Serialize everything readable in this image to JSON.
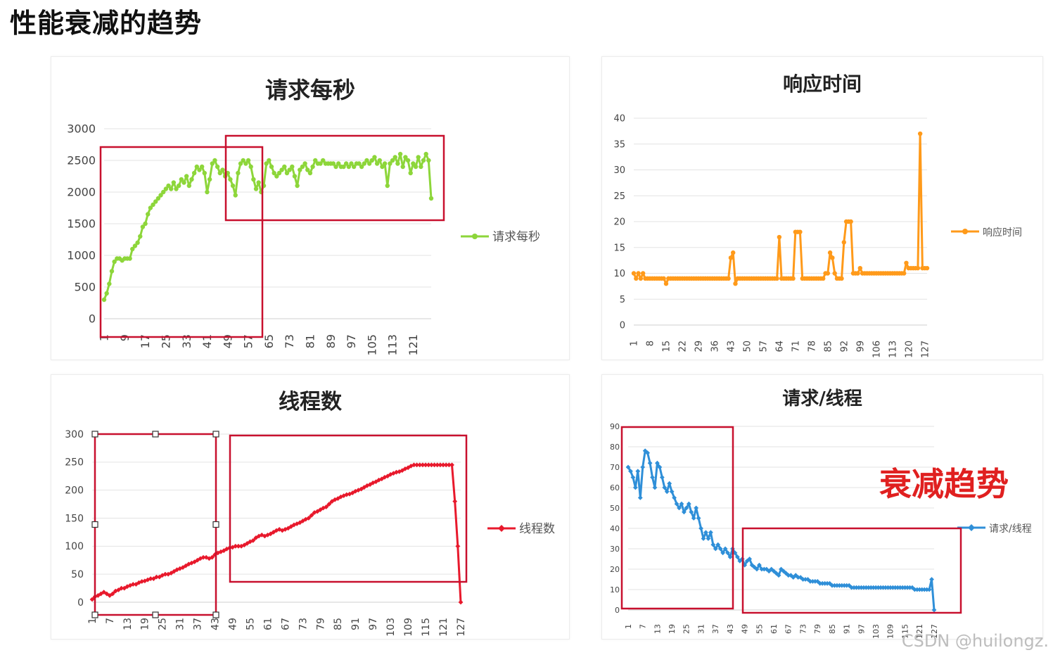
{
  "page": {
    "title": "性能衰减的趋势",
    "annotation": "衰减趋势",
    "watermark": "CSDN @huilongz."
  },
  "colors": {
    "rps": "#8dd63a",
    "resp": "#ff9a1a",
    "threads": "#e8192c",
    "ratio": "#2f8fd8",
    "box": "#c8102e",
    "annotation": "#e02020"
  },
  "chart_data": [
    {
      "type": "line",
      "title": "请求每秒",
      "legend": "请求每秒",
      "legend_position": "right",
      "ylim": [
        0,
        3000
      ],
      "yticks": [
        0,
        500,
        1000,
        1500,
        2000,
        2500,
        3000
      ],
      "x_tick_labels": [
        "1",
        "9",
        "17",
        "25",
        "33",
        "41",
        "49",
        "57",
        "65",
        "73",
        "81",
        "89",
        "97",
        "105",
        "113",
        "121"
      ],
      "series": [
        {
          "x": [
            1,
            2,
            3,
            4,
            5,
            6,
            7,
            8,
            9,
            10,
            11,
            12,
            13,
            14,
            15,
            16,
            17,
            18,
            19,
            20,
            21,
            22,
            23,
            24,
            25,
            26,
            27,
            28,
            29,
            30,
            31,
            32,
            33,
            34,
            35,
            36,
            37,
            38,
            39,
            40,
            41,
            42,
            43,
            44,
            45,
            46,
            47,
            48,
            49,
            50,
            51,
            52,
            53,
            54,
            55,
            56,
            57,
            58,
            59,
            60,
            61,
            62,
            63,
            64,
            65,
            66,
            67,
            68,
            69,
            70,
            71,
            72,
            73,
            74,
            75,
            76,
            77,
            78,
            79,
            80,
            81,
            82,
            83,
            84,
            85,
            86,
            87,
            88,
            89,
            90,
            91,
            92,
            93,
            94,
            95,
            96,
            97,
            98,
            99,
            100,
            101,
            102,
            103,
            104,
            105,
            106,
            107,
            108,
            109,
            110,
            111,
            112,
            113,
            114,
            115,
            116,
            117,
            118,
            119,
            120,
            121,
            122,
            123,
            124,
            125,
            126,
            127,
            128
          ],
          "values": [
            300,
            400,
            550,
            750,
            900,
            950,
            950,
            920,
            950,
            950,
            950,
            1100,
            1150,
            1200,
            1300,
            1450,
            1500,
            1650,
            1750,
            1800,
            1850,
            1900,
            1950,
            2000,
            2050,
            2100,
            2050,
            2150,
            2050,
            2100,
            2200,
            2150,
            2250,
            2100,
            2200,
            2300,
            2400,
            2350,
            2400,
            2300,
            2000,
            2200,
            2450,
            2500,
            2400,
            2300,
            2350,
            2250,
            2300,
            2200,
            2100,
            1950,
            2300,
            2450,
            2500,
            2450,
            2500,
            2400,
            2200,
            2050,
            2150,
            2000,
            2100,
            2450,
            2500,
            2400,
            2300,
            2250,
            2300,
            2350,
            2400,
            2300,
            2350,
            2400,
            2250,
            2100,
            2350,
            2400,
            2450,
            2350,
            2300,
            2400,
            2500,
            2450,
            2450,
            2500,
            2450,
            2450,
            2450,
            2450,
            2400,
            2450,
            2400,
            2400,
            2450,
            2400,
            2450,
            2400,
            2450,
            2450,
            2400,
            2450,
            2500,
            2450,
            2500,
            2550,
            2450,
            2500,
            2400,
            2450,
            2100,
            2450,
            2500,
            2550,
            2450,
            2600,
            2400,
            2550,
            2500,
            2300,
            2450,
            2400,
            2550,
            2400,
            2500,
            2600,
            2500,
            1900
          ]
        }
      ]
    },
    {
      "type": "line",
      "title": "响应时间",
      "legend": "响应时间",
      "legend_position": "right",
      "ylim": [
        0,
        40
      ],
      "yticks": [
        0,
        5,
        10,
        15,
        20,
        25,
        30,
        35,
        40
      ],
      "x_tick_labels": [
        "1",
        "8",
        "15",
        "22",
        "29",
        "36",
        "43",
        "50",
        "57",
        "64",
        "71",
        "78",
        "85",
        "92",
        "99",
        "106",
        "113",
        "120",
        "127"
      ],
      "series": [
        {
          "x": [
            1,
            2,
            3,
            4,
            5,
            6,
            7,
            8,
            9,
            10,
            11,
            12,
            13,
            14,
            15,
            16,
            17,
            18,
            19,
            20,
            21,
            22,
            23,
            24,
            25,
            26,
            27,
            28,
            29,
            30,
            31,
            32,
            33,
            34,
            35,
            36,
            37,
            38,
            39,
            40,
            41,
            42,
            43,
            44,
            45,
            46,
            47,
            48,
            49,
            50,
            51,
            52,
            53,
            54,
            55,
            56,
            57,
            58,
            59,
            60,
            61,
            62,
            63,
            64,
            65,
            66,
            67,
            68,
            69,
            70,
            71,
            72,
            73,
            74,
            75,
            76,
            77,
            78,
            79,
            80,
            81,
            82,
            83,
            84,
            85,
            86,
            87,
            88,
            89,
            90,
            91,
            92,
            93,
            94,
            95,
            96,
            97,
            98,
            99,
            100,
            101,
            102,
            103,
            104,
            105,
            106,
            107,
            108,
            109,
            110,
            111,
            112,
            113,
            114,
            115,
            116,
            117,
            118,
            119,
            120,
            121,
            122,
            123,
            124,
            125,
            126,
            127,
            128
          ],
          "values": [
            10,
            9,
            10,
            9,
            10,
            9,
            9,
            9,
            9,
            9,
            9,
            9,
            9,
            9,
            8,
            9,
            9,
            9,
            9,
            9,
            9,
            9,
            9,
            9,
            9,
            9,
            9,
            9,
            9,
            9,
            9,
            9,
            9,
            9,
            9,
            9,
            9,
            9,
            9,
            9,
            9,
            9,
            13,
            14,
            8,
            9,
            9,
            9,
            9,
            9,
            9,
            9,
            9,
            9,
            9,
            9,
            9,
            9,
            9,
            9,
            9,
            9,
            9,
            17,
            9,
            9,
            9,
            9,
            9,
            9,
            18,
            18,
            18,
            9,
            9,
            9,
            9,
            9,
            9,
            9,
            9,
            9,
            9,
            10,
            10,
            14,
            13,
            10,
            9,
            9,
            9,
            16,
            20,
            20,
            20,
            10,
            10,
            10,
            11,
            10,
            10,
            10,
            10,
            10,
            10,
            10,
            10,
            10,
            10,
            10,
            10,
            10,
            10,
            10,
            10,
            10,
            10,
            10,
            12,
            11,
            11,
            11,
            11,
            11,
            37,
            11,
            11,
            11
          ]
        }
      ]
    },
    {
      "type": "line",
      "title": "线程数",
      "legend": "线程数",
      "legend_position": "right",
      "ylim": [
        0,
        300
      ],
      "yticks": [
        0,
        50,
        100,
        150,
        200,
        250,
        300
      ],
      "x_tick_labels": [
        "1",
        "7",
        "13",
        "19",
        "25",
        "31",
        "37",
        "43",
        "49",
        "55",
        "61",
        "67",
        "73",
        "79",
        "85",
        "91",
        "97",
        "103",
        "109",
        "115",
        "121",
        "127"
      ],
      "series": [
        {
          "x": [
            1,
            2,
            3,
            4,
            5,
            6,
            7,
            8,
            9,
            10,
            11,
            12,
            13,
            14,
            15,
            16,
            17,
            18,
            19,
            20,
            21,
            22,
            23,
            24,
            25,
            26,
            27,
            28,
            29,
            30,
            31,
            32,
            33,
            34,
            35,
            36,
            37,
            38,
            39,
            40,
            41,
            42,
            43,
            44,
            45,
            46,
            47,
            48,
            49,
            50,
            51,
            52,
            53,
            54,
            55,
            56,
            57,
            58,
            59,
            60,
            61,
            62,
            63,
            64,
            65,
            66,
            67,
            68,
            69,
            70,
            71,
            72,
            73,
            74,
            75,
            76,
            77,
            78,
            79,
            80,
            81,
            82,
            83,
            84,
            85,
            86,
            87,
            88,
            89,
            90,
            91,
            92,
            93,
            94,
            95,
            96,
            97,
            98,
            99,
            100,
            101,
            102,
            103,
            104,
            105,
            106,
            107,
            108,
            109,
            110,
            111,
            112,
            113,
            114,
            115,
            116,
            117,
            118,
            119,
            120,
            121,
            122,
            123,
            124,
            125,
            126,
            127
          ],
          "values": [
            5,
            10,
            12,
            15,
            18,
            15,
            12,
            15,
            20,
            22,
            25,
            25,
            28,
            30,
            32,
            32,
            35,
            37,
            38,
            40,
            42,
            42,
            45,
            45,
            48,
            50,
            50,
            52,
            55,
            58,
            60,
            62,
            65,
            68,
            70,
            72,
            75,
            78,
            80,
            80,
            78,
            80,
            85,
            88,
            90,
            92,
            95,
            97,
            98,
            100,
            100,
            100,
            102,
            105,
            108,
            110,
            115,
            118,
            120,
            118,
            120,
            122,
            125,
            128,
            130,
            128,
            130,
            132,
            135,
            138,
            140,
            142,
            145,
            148,
            150,
            155,
            160,
            162,
            165,
            168,
            170,
            175,
            180,
            183,
            185,
            188,
            190,
            192,
            193,
            195,
            198,
            200,
            202,
            205,
            208,
            210,
            213,
            215,
            218,
            220,
            223,
            225,
            228,
            230,
            232,
            233,
            235,
            238,
            240,
            243,
            245,
            245,
            245,
            245,
            245,
            245,
            245,
            245,
            245,
            245,
            245,
            245,
            245,
            245,
            180,
            100,
            0
          ]
        }
      ]
    },
    {
      "type": "line",
      "title": "请求/线程",
      "legend": "请求/线程",
      "legend_position": "right",
      "ylim": [
        0,
        90
      ],
      "yticks": [
        0,
        10,
        20,
        30,
        40,
        50,
        60,
        70,
        80,
        90
      ],
      "x_tick_labels": [
        "1",
        "7",
        "13",
        "19",
        "25",
        "31",
        "37",
        "43",
        "49",
        "55",
        "61",
        "67",
        "73",
        "79",
        "85",
        "91",
        "97",
        "103",
        "109",
        "115",
        "121",
        "127"
      ],
      "series": [
        {
          "x": [
            1,
            2,
            3,
            4,
            5,
            6,
            7,
            8,
            9,
            10,
            11,
            12,
            13,
            14,
            15,
            16,
            17,
            18,
            19,
            20,
            21,
            22,
            23,
            24,
            25,
            26,
            27,
            28,
            29,
            30,
            31,
            32,
            33,
            34,
            35,
            36,
            37,
            38,
            39,
            40,
            41,
            42,
            43,
            44,
            45,
            46,
            47,
            48,
            49,
            50,
            51,
            52,
            53,
            54,
            55,
            56,
            57,
            58,
            59,
            60,
            61,
            62,
            63,
            64,
            65,
            66,
            67,
            68,
            69,
            70,
            71,
            72,
            73,
            74,
            75,
            76,
            77,
            78,
            79,
            80,
            81,
            82,
            83,
            84,
            85,
            86,
            87,
            88,
            89,
            90,
            91,
            92,
            93,
            94,
            95,
            96,
            97,
            98,
            99,
            100,
            101,
            102,
            103,
            104,
            105,
            106,
            107,
            108,
            109,
            110,
            111,
            112,
            113,
            114,
            115,
            116,
            117,
            118,
            119,
            120,
            121,
            122,
            123,
            124,
            125,
            126,
            127
          ],
          "values": [
            70,
            68,
            65,
            60,
            68,
            55,
            70,
            78,
            77,
            72,
            65,
            60,
            72,
            70,
            65,
            60,
            58,
            62,
            58,
            55,
            52,
            50,
            52,
            48,
            50,
            52,
            48,
            45,
            50,
            45,
            40,
            35,
            38,
            35,
            38,
            32,
            30,
            32,
            30,
            28,
            30,
            28,
            26,
            30,
            28,
            26,
            24,
            25,
            22,
            24,
            25,
            22,
            21,
            20,
            22,
            20,
            20,
            20,
            19,
            20,
            19,
            18,
            17,
            20,
            19,
            18,
            17,
            17,
            16,
            17,
            16,
            16,
            15,
            15,
            15,
            14,
            14,
            14,
            14,
            13,
            13,
            13,
            13,
            13,
            12,
            12,
            12,
            12,
            12,
            12,
            12,
            12,
            11,
            11,
            11,
            11,
            11,
            11,
            11,
            11,
            11,
            11,
            11,
            11,
            11,
            11,
            11,
            11,
            11,
            11,
            11,
            11,
            11,
            11,
            11,
            11,
            11,
            11,
            10,
            10,
            10,
            10,
            10,
            10,
            10,
            15,
            0
          ]
        }
      ]
    }
  ]
}
